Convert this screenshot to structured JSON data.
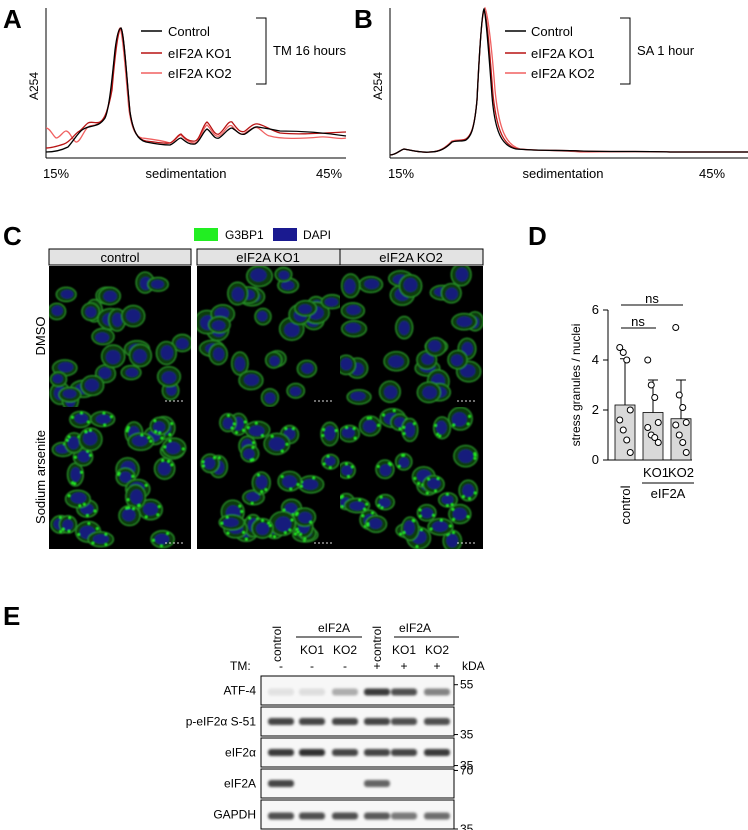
{
  "panels": {
    "A": {
      "letter": "A",
      "ylabel": "A254",
      "xlabel": "sedimentation",
      "x_start": "15%",
      "x_end": "45%",
      "condition": "TM 16 hours",
      "legend": [
        "Control",
        "eIF2A KO1",
        "eIF2A KO2"
      ]
    },
    "B": {
      "letter": "B",
      "ylabel": "A254",
      "xlabel": "sedimentation",
      "x_start": "15%",
      "x_end": "45%",
      "condition": "SA 1 hour",
      "legend": [
        "Control",
        "eIF2A KO1",
        "eIF2A KO2"
      ]
    },
    "C": {
      "letter": "C",
      "legend": [
        "G3BP1",
        "DAPI"
      ],
      "columns": [
        "control",
        "eIF2A KO1",
        "eIF2A KO2"
      ],
      "rows": [
        "DMSO",
        "Sodium arsenite"
      ]
    },
    "D": {
      "letter": "D",
      "ylabel": "stress granules / nuclei",
      "groups": [
        "control",
        "KO1",
        "KO2"
      ],
      "group_label": "eIF2A",
      "sig": [
        "ns",
        "ns"
      ],
      "yticks": [
        "0",
        "2",
        "4",
        "6"
      ]
    },
    "E": {
      "letter": "E",
      "lanes": [
        "control",
        "KO1",
        "KO2",
        "control",
        "KO1",
        "KO2"
      ],
      "group_label": "eIF2A",
      "tm_label": "TM:",
      "tm": [
        "-",
        "-",
        "-",
        "+",
        "+",
        "+"
      ],
      "kda_label": "kDA",
      "blots": [
        {
          "label": "ATF-4",
          "marker": "55"
        },
        {
          "label": "p-eIF2α S-51",
          "marker": "35"
        },
        {
          "label": "eIF2α",
          "marker": "35"
        },
        {
          "label": "eIF2A",
          "marker": "70"
        },
        {
          "label": "GAPDH",
          "marker": "35"
        }
      ]
    }
  },
  "chart_data": [
    {
      "type": "bar",
      "panel": "D",
      "categories": [
        "control",
        "KO1",
        "KO2"
      ],
      "values": [
        2.2,
        1.9,
        1.65
      ],
      "error": [
        1.85,
        1.3,
        1.55
      ],
      "points": [
        [
          4.5,
          4.3,
          4.0,
          2.0,
          1.6,
          1.2,
          0.8,
          0.3
        ],
        [
          4.0,
          3.0,
          2.5,
          1.5,
          1.3,
          1.0,
          0.9,
          0.7
        ],
        [
          5.3,
          2.6,
          2.1,
          1.5,
          1.4,
          1.0,
          0.7,
          0.3
        ]
      ],
      "ylabel": "stress granules / nuclei",
      "ylim": [
        0,
        6
      ],
      "colors": {
        "bar": "#d9d9d9"
      }
    },
    {
      "type": "line",
      "panel": "A",
      "xlabel": "sedimentation",
      "ylabel": "A254",
      "series": [
        {
          "name": "Control",
          "color": "#000000"
        },
        {
          "name": "eIF2A KO1",
          "color": "#b81414"
        },
        {
          "name": "eIF2A KO2",
          "color": "#f06060"
        }
      ]
    },
    {
      "type": "line",
      "panel": "B",
      "xlabel": "sedimentation",
      "ylabel": "A254",
      "series": [
        {
          "name": "Control",
          "color": "#000000"
        },
        {
          "name": "eIF2A KO1",
          "color": "#b81414"
        },
        {
          "name": "eIF2A KO2",
          "color": "#f06060"
        }
      ]
    }
  ],
  "colors": {
    "g3bp1": "#22ee22",
    "dapi": "#1a1a90",
    "control": "#000000",
    "ko1": "#b81414",
    "ko2": "#f06060"
  }
}
